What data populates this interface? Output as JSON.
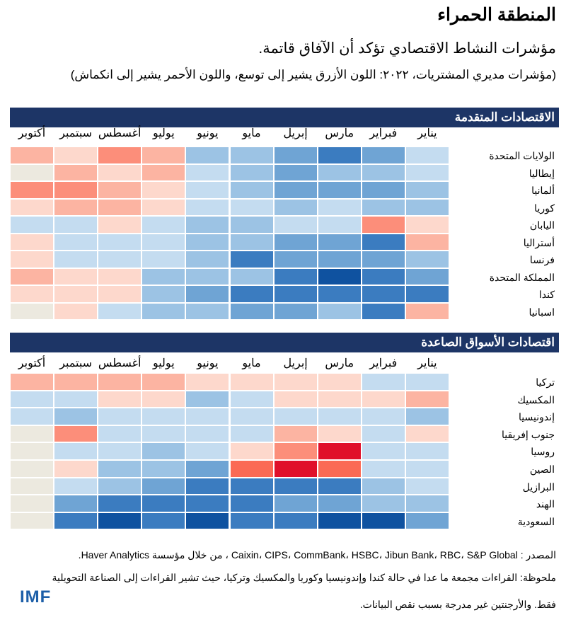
{
  "title": "المنطقة الحمراء",
  "subtitle": "مؤشرات النشاط الاقتصادي تؤكد أن الآفاق قاتمة.",
  "note": "(مؤشرات مديري المشتريات، ٢٠٢٢: اللون الأزرق يشير إلى توسع، واللون الأحمر يشير إلى انكماش)",
  "source": "المصدر : Caixin، CIPS، CommBank، HSBC، Jibun Bank، RBC، S&P Global ، من خلال مؤسسة Haver Analytics.",
  "footnote_line1": "ملحوظة: القراءات مجمعة ما عدا في حالة كندا وإندونيسيا وكوريا والمكسيك وتركيا، حيث تشير القراءات إلى الصناعة التحويلية",
  "footnote_line2": "فقط. والأرجنتين غير مدرجة بسبب نقص البيانات.",
  "logo": "IMF",
  "colors": {
    "header_bar": "#1d3566",
    "-5": "#e0102a",
    "-4": "#fb6a55",
    "-3": "#fc8e7a",
    "-2": "#fcb4a2",
    "-1": "#fdd8cc",
    "null": "#ece9df",
    "1": "#c4dcf0",
    "2": "#9cc3e4",
    "3": "#6fa4d4",
    "4": "#3b7cc0",
    "5": "#0f52a0"
  },
  "chart_data": [
    {
      "type": "heatmap",
      "title": "الاقتصادات المتقدمة",
      "value_scale": "-5 (strong contraction, red) to 5 (strong expansion, blue); null = no data",
      "months": [
        "يناير",
        "فبراير",
        "مارس",
        "إبريل",
        "مايو",
        "يونيو",
        "يوليو",
        "أغسطس",
        "سبتمبر",
        "أكتوبر"
      ],
      "rows": [
        {
          "name": "الولايات المتحدة",
          "values": [
            1,
            3,
            4,
            3,
            2,
            2,
            -2,
            -3,
            -1,
            -2
          ]
        },
        {
          "name": "إيطاليا",
          "values": [
            1,
            2,
            2,
            3,
            2,
            1,
            -2,
            -1,
            -2,
            null
          ]
        },
        {
          "name": "ألمانيا",
          "values": [
            2,
            3,
            3,
            3,
            2,
            1,
            -1,
            -2,
            -3,
            -3
          ]
        },
        {
          "name": "كوريا",
          "values": [
            2,
            2,
            1,
            2,
            1,
            1,
            -1,
            -2,
            -2,
            -1
          ]
        },
        {
          "name": "اليابان",
          "values": [
            -1,
            -3,
            1,
            1,
            2,
            2,
            1,
            -1,
            1,
            1
          ]
        },
        {
          "name": "أستراليا",
          "values": [
            -2,
            4,
            3,
            3,
            2,
            2,
            1,
            1,
            1,
            -1
          ]
        },
        {
          "name": "فرنسا",
          "values": [
            2,
            3,
            3,
            3,
            4,
            2,
            1,
            1,
            1,
            -1
          ]
        },
        {
          "name": "المملكة المتحدة",
          "values": [
            3,
            4,
            5,
            4,
            2,
            2,
            2,
            -1,
            -1,
            -2
          ]
        },
        {
          "name": "كندا",
          "values": [
            4,
            4,
            4,
            4,
            4,
            3,
            2,
            -1,
            -1,
            -1
          ]
        },
        {
          "name": "اسبانيا",
          "values": [
            -2,
            4,
            2,
            3,
            3,
            2,
            2,
            1,
            -1,
            null
          ]
        }
      ]
    },
    {
      "type": "heatmap",
      "title": "اقتصادات الأسواق الصاعدة",
      "value_scale": "-5 (strong contraction, red) to 5 (strong expansion, blue); null = no data",
      "months": [
        "يناير",
        "فبراير",
        "مارس",
        "إبريل",
        "مايو",
        "يونيو",
        "يوليو",
        "أغسطس",
        "سبتمبر",
        "أكتوبر"
      ],
      "rows": [
        {
          "name": "تركيا",
          "values": [
            1,
            1,
            -1,
            -1,
            -1,
            -1,
            -2,
            -2,
            -2,
            -2
          ]
        },
        {
          "name": "المكسيك",
          "values": [
            -2,
            -1,
            -1,
            -1,
            1,
            2,
            -1,
            -1,
            1,
            1
          ]
        },
        {
          "name": "إندونيسيا",
          "values": [
            2,
            1,
            1,
            1,
            1,
            1,
            1,
            1,
            2,
            1
          ]
        },
        {
          "name": "جنوب إفريقيا",
          "values": [
            -1,
            1,
            -1,
            -2,
            1,
            1,
            1,
            1,
            -3,
            null
          ]
        },
        {
          "name": "روسيا",
          "values": [
            1,
            1,
            -5,
            -3,
            -1,
            1,
            2,
            1,
            1,
            null
          ]
        },
        {
          "name": "الصين",
          "values": [
            1,
            1,
            -4,
            -5,
            -4,
            3,
            2,
            2,
            -1,
            null
          ]
        },
        {
          "name": "البرازيل",
          "values": [
            1,
            2,
            4,
            4,
            4,
            4,
            3,
            2,
            1,
            null
          ]
        },
        {
          "name": "الهند",
          "values": [
            2,
            2,
            3,
            3,
            4,
            4,
            4,
            4,
            3,
            null
          ]
        },
        {
          "name": "السعودية",
          "values": [
            3,
            5,
            5,
            4,
            4,
            5,
            4,
            5,
            4,
            null
          ]
        }
      ]
    }
  ]
}
